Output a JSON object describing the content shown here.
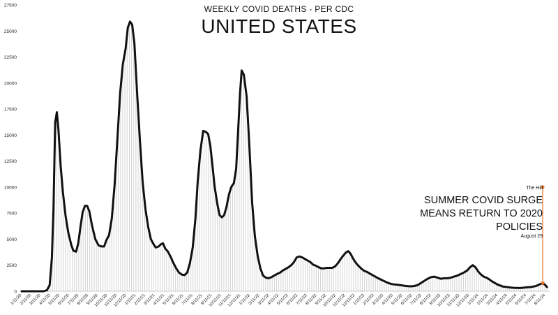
{
  "chart_data": {
    "type": "line",
    "title": "UNITED STATES",
    "subtitle": "WEEKLY COVID DEATHS - PER CDC",
    "xlabel": "",
    "ylabel": "",
    "ylim": [
      0,
      27500
    ],
    "grid": false,
    "y_ticks": [
      0,
      2500,
      5000,
      7500,
      10000,
      12500,
      15000,
      17500,
      20000,
      22500,
      25000,
      27500
    ],
    "x_ticks": [
      "1/11/20",
      "2/11/20",
      "3/11/20",
      "4/11/20",
      "5/11/20",
      "6/11/20",
      "7/11/20",
      "8/11/20",
      "9/11/20",
      "10/11/20",
      "11/11/20",
      "12/11/20",
      "1/11/21",
      "2/11/21",
      "3/11/21",
      "4/11/21",
      "5/11/21",
      "6/11/21",
      "7/11/21",
      "8/11/21",
      "9/11/21",
      "10/11/21",
      "11/11/21",
      "12/11/21",
      "1/11/22",
      "2/11/22",
      "3/11/22",
      "4/11/22",
      "5/11/22",
      "6/11/22",
      "7/11/22",
      "8/11/22",
      "9/11/22",
      "10/11/22",
      "11/11/22",
      "12/11/22",
      "1/11/23",
      "2/11/23",
      "3/11/23",
      "4/11/23",
      "5/11/23",
      "6/11/23",
      "7/11/23",
      "8/11/23",
      "9/11/23",
      "10/11/23",
      "11/11/23",
      "12/11/23",
      "1/11/24",
      "2/11/24",
      "3/11/24",
      "4/11/24",
      "5/11/24",
      "6/11/24",
      "7/11/24",
      "8/11/24"
    ],
    "series": [
      {
        "values": [
          [
            0,
            0
          ],
          [
            0.5,
            0
          ],
          [
            1,
            0
          ],
          [
            1.5,
            0
          ],
          [
            2,
            0
          ],
          [
            2.3,
            100
          ],
          [
            2.55,
            600
          ],
          [
            2.75,
            3200
          ],
          [
            2.9,
            8000
          ],
          [
            3.05,
            16200
          ],
          [
            3.2,
            17200
          ],
          [
            3.35,
            15500
          ],
          [
            3.55,
            12000
          ],
          [
            3.75,
            9500
          ],
          [
            4,
            7200
          ],
          [
            4.25,
            5600
          ],
          [
            4.5,
            4500
          ],
          [
            4.7,
            3900
          ],
          [
            4.95,
            3800
          ],
          [
            5.15,
            4600
          ],
          [
            5.35,
            6200
          ],
          [
            5.55,
            7600
          ],
          [
            5.75,
            8200
          ],
          [
            5.95,
            8200
          ],
          [
            6.15,
            7700
          ],
          [
            6.4,
            6300
          ],
          [
            6.7,
            5000
          ],
          [
            7,
            4400
          ],
          [
            7.25,
            4300
          ],
          [
            7.5,
            4300
          ],
          [
            7.7,
            4900
          ],
          [
            7.95,
            5400
          ],
          [
            8.2,
            7000
          ],
          [
            8.45,
            10200
          ],
          [
            8.7,
            14500
          ],
          [
            8.95,
            19000
          ],
          [
            9.2,
            21800
          ],
          [
            9.45,
            23300
          ],
          [
            9.65,
            25300
          ],
          [
            9.85,
            25900
          ],
          [
            10.05,
            25600
          ],
          [
            10.25,
            23800
          ],
          [
            10.5,
            19000
          ],
          [
            10.75,
            14500
          ],
          [
            11,
            10500
          ],
          [
            11.25,
            7900
          ],
          [
            11.5,
            6200
          ],
          [
            11.75,
            5000
          ],
          [
            12,
            4500
          ],
          [
            12.2,
            4200
          ],
          [
            12.45,
            4300
          ],
          [
            12.65,
            4500
          ],
          [
            12.85,
            4600
          ],
          [
            13.05,
            4100
          ],
          [
            13.3,
            3800
          ],
          [
            13.55,
            3300
          ],
          [
            13.8,
            2700
          ],
          [
            14.05,
            2200
          ],
          [
            14.3,
            1800
          ],
          [
            14.55,
            1600
          ],
          [
            14.8,
            1550
          ],
          [
            15.05,
            1800
          ],
          [
            15.3,
            2700
          ],
          [
            15.55,
            4200
          ],
          [
            15.8,
            7000
          ],
          [
            16,
            10500
          ],
          [
            16.25,
            13500
          ],
          [
            16.5,
            15400
          ],
          [
            16.75,
            15300
          ],
          [
            16.95,
            15100
          ],
          [
            17.15,
            14000
          ],
          [
            17.35,
            12000
          ],
          [
            17.55,
            10000
          ],
          [
            17.8,
            8300
          ],
          [
            18,
            7300
          ],
          [
            18.2,
            7100
          ],
          [
            18.4,
            7300
          ],
          [
            18.6,
            8000
          ],
          [
            18.85,
            9300
          ],
          [
            19.05,
            10000
          ],
          [
            19.3,
            10400
          ],
          [
            19.5,
            11800
          ],
          [
            19.7,
            15800
          ],
          [
            19.85,
            19000
          ],
          [
            20,
            21200
          ],
          [
            20.2,
            20800
          ],
          [
            20.45,
            18700
          ],
          [
            20.7,
            14000
          ],
          [
            20.95,
            8500
          ],
          [
            21.2,
            5300
          ],
          [
            21.45,
            3400
          ],
          [
            21.7,
            2200
          ],
          [
            21.95,
            1500
          ],
          [
            22.2,
            1300
          ],
          [
            22.45,
            1250
          ],
          [
            22.7,
            1350
          ],
          [
            22.95,
            1500
          ],
          [
            23.2,
            1650
          ],
          [
            23.5,
            1800
          ],
          [
            23.75,
            2000
          ],
          [
            24,
            2150
          ],
          [
            24.25,
            2300
          ],
          [
            24.5,
            2500
          ],
          [
            24.75,
            2800
          ],
          [
            25,
            3250
          ],
          [
            25.25,
            3350
          ],
          [
            25.5,
            3250
          ],
          [
            25.75,
            3100
          ],
          [
            26,
            2950
          ],
          [
            26.25,
            2800
          ],
          [
            26.5,
            2550
          ],
          [
            26.75,
            2450
          ],
          [
            27,
            2300
          ],
          [
            27.25,
            2200
          ],
          [
            27.5,
            2200
          ],
          [
            27.75,
            2250
          ],
          [
            28,
            2250
          ],
          [
            28.25,
            2250
          ],
          [
            28.5,
            2400
          ],
          [
            28.75,
            2700
          ],
          [
            29,
            3100
          ],
          [
            29.25,
            3450
          ],
          [
            29.5,
            3750
          ],
          [
            29.7,
            3850
          ],
          [
            29.9,
            3600
          ],
          [
            30.15,
            3100
          ],
          [
            30.4,
            2700
          ],
          [
            30.65,
            2400
          ],
          [
            30.9,
            2150
          ],
          [
            31.15,
            1950
          ],
          [
            31.4,
            1850
          ],
          [
            31.65,
            1700
          ],
          [
            31.9,
            1550
          ],
          [
            32.15,
            1400
          ],
          [
            32.4,
            1250
          ],
          [
            32.7,
            1100
          ],
          [
            33,
            950
          ],
          [
            33.3,
            800
          ],
          [
            33.6,
            700
          ],
          [
            33.9,
            650
          ],
          [
            34.2,
            620
          ],
          [
            34.5,
            580
          ],
          [
            34.8,
            520
          ],
          [
            35.1,
            480
          ],
          [
            35.4,
            470
          ],
          [
            35.7,
            500
          ],
          [
            36,
            600
          ],
          [
            36.3,
            800
          ],
          [
            36.6,
            1000
          ],
          [
            36.9,
            1200
          ],
          [
            37.2,
            1350
          ],
          [
            37.5,
            1400
          ],
          [
            37.8,
            1300
          ],
          [
            38.1,
            1200
          ],
          [
            38.4,
            1250
          ],
          [
            38.7,
            1250
          ],
          [
            39,
            1300
          ],
          [
            39.3,
            1400
          ],
          [
            39.6,
            1500
          ],
          [
            39.9,
            1650
          ],
          [
            40.2,
            1800
          ],
          [
            40.5,
            2000
          ],
          [
            40.75,
            2300
          ],
          [
            41,
            2500
          ],
          [
            41.25,
            2300
          ],
          [
            41.5,
            1900
          ],
          [
            41.75,
            1600
          ],
          [
            42,
            1400
          ],
          [
            42.25,
            1300
          ],
          [
            42.5,
            1150
          ],
          [
            42.75,
            950
          ],
          [
            43,
            800
          ],
          [
            43.25,
            650
          ],
          [
            43.5,
            550
          ],
          [
            43.75,
            450
          ],
          [
            44,
            420
          ],
          [
            44.25,
            380
          ],
          [
            44.5,
            350
          ],
          [
            44.75,
            330
          ],
          [
            45,
            320
          ],
          [
            45.25,
            310
          ],
          [
            45.5,
            330
          ],
          [
            45.75,
            360
          ],
          [
            46,
            380
          ],
          [
            46.25,
            400
          ],
          [
            46.5,
            450
          ],
          [
            46.75,
            500
          ],
          [
            46.95,
            600
          ],
          [
            47.15,
            700
          ],
          [
            47.35,
            750
          ],
          [
            47.55,
            650
          ],
          [
            47.75,
            400
          ]
        ]
      }
    ],
    "annotation": {
      "source": "The Hill",
      "headline": [
        "SUMMER COVID SURGE",
        "MEANS RETURN TO 2020",
        "POLICIES"
      ],
      "date": "August 29",
      "arrow_from_y": 10000,
      "arrow_to_y": 500,
      "arrow_x": 47.55,
      "color": "#e8732a"
    },
    "colors": {
      "line": "#111111",
      "bars": "#d4d4d4",
      "accent": "#e8732a"
    }
  }
}
